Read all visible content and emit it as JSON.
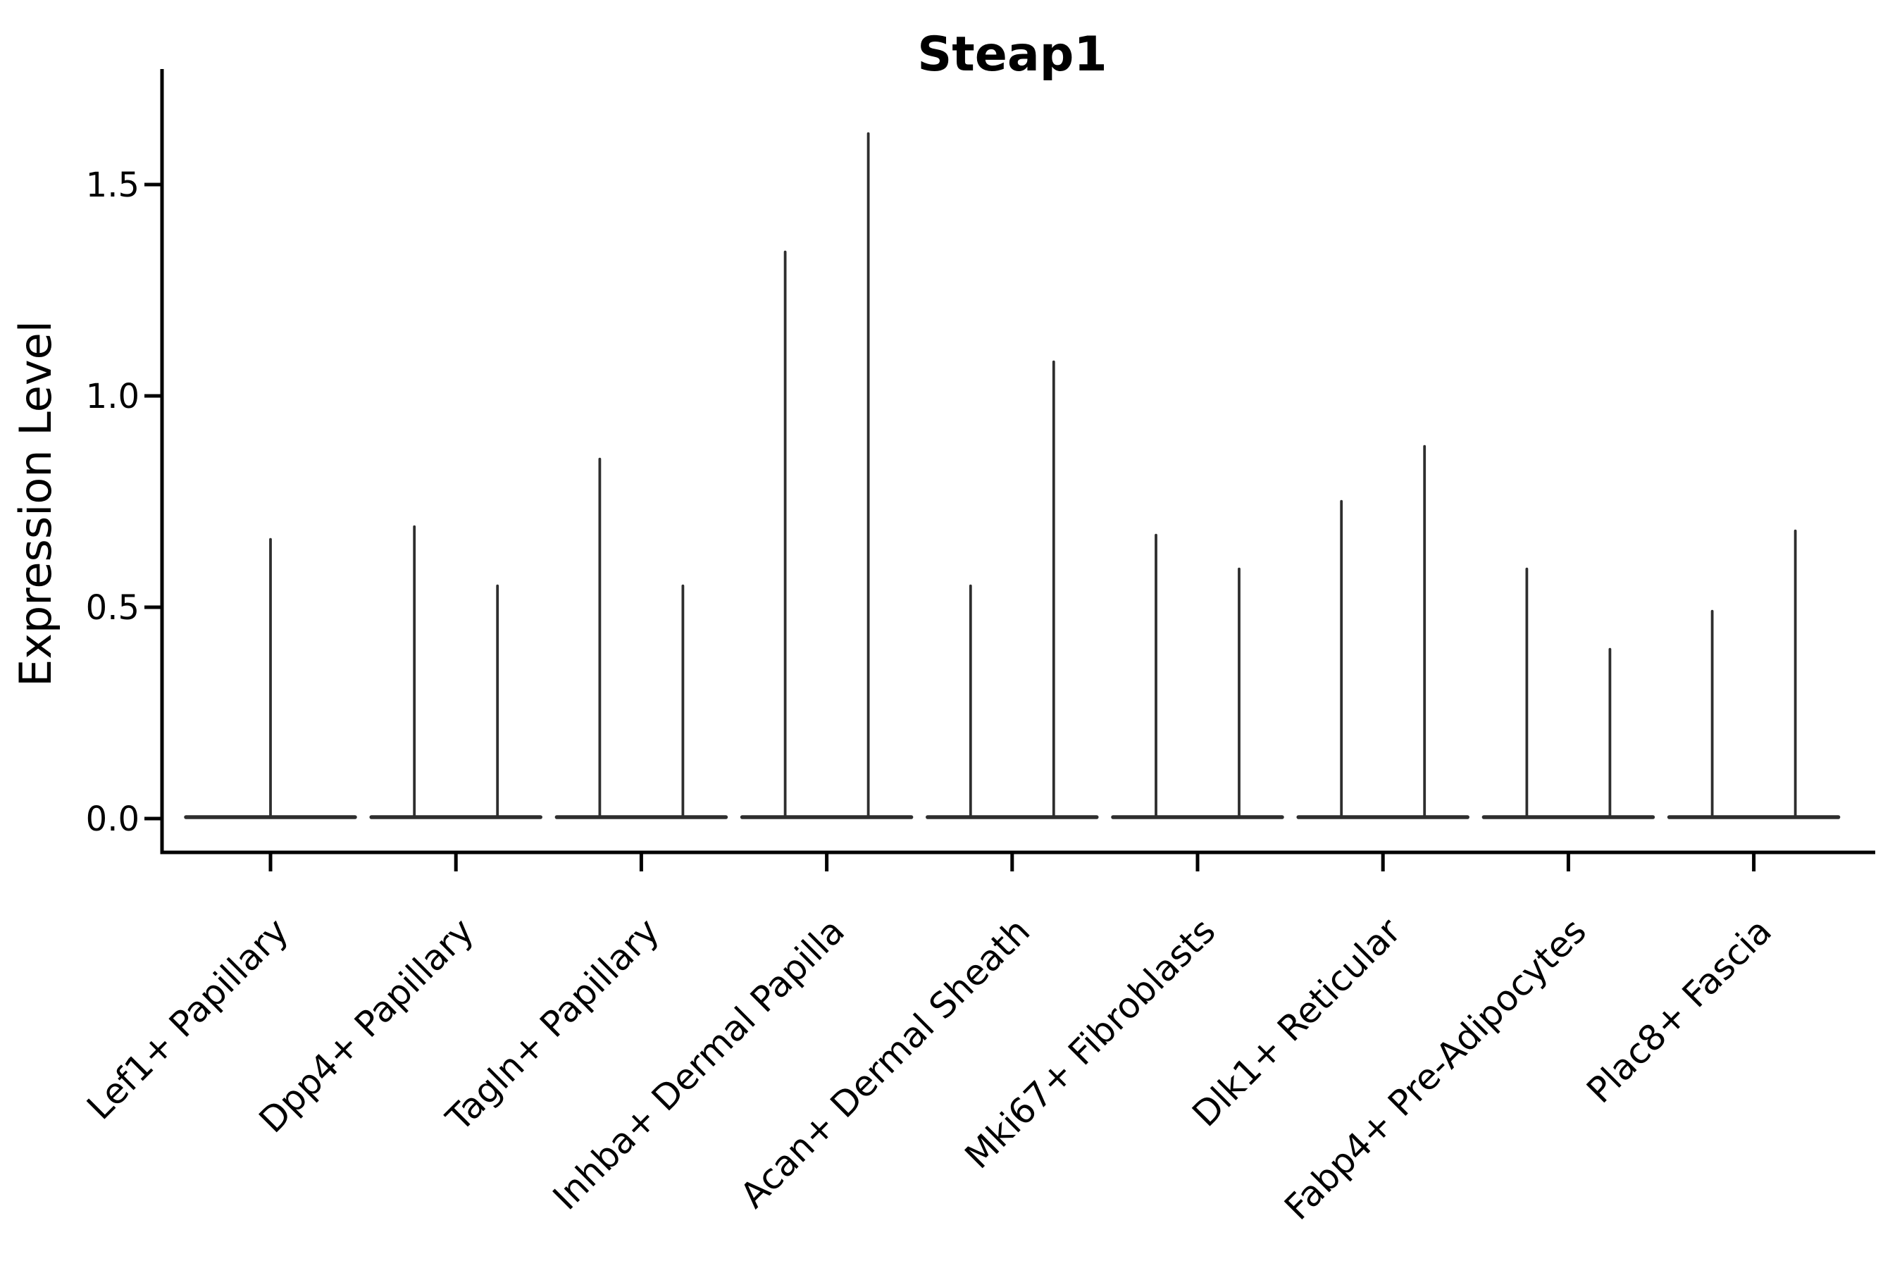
{
  "figure": {
    "background": "#ffffff"
  },
  "chart_data": {
    "type": "violin",
    "title": "Steap1",
    "xlabel": "",
    "ylabel": "Expression Level",
    "legend": "none",
    "grid": false,
    "ylim": [
      -0.08,
      1.78
    ],
    "ytick_values": [
      0.0,
      0.5,
      1.0,
      1.5
    ],
    "ytick_labels": [
      "0.0",
      "0.5",
      "1.0",
      "1.5"
    ],
    "categories": [
      "Lef1+ Papillary",
      "Dpp4+ Papillary",
      "Tagln+ Papillary",
      "Inhba+ Dermal Papilla",
      "Acan+ Dermal Sheath",
      "Mki67+ Fibroblasts",
      "Dlk1+ Reticular",
      "Fabp4+ Pre-Adipocytes",
      "Plac8+ Fascia"
    ],
    "violins": [
      {
        "category": "Lef1+ Papillary",
        "baseline_value": 0.0,
        "spikes": [
          {
            "pos": 0,
            "value": 0.66
          }
        ]
      },
      {
        "category": "Dpp4+ Papillary",
        "baseline_value": 0.0,
        "spikes": [
          {
            "pos": -1,
            "value": 0.69
          },
          {
            "pos": 1,
            "value": 0.55
          }
        ]
      },
      {
        "category": "Tagln+ Papillary",
        "baseline_value": 0.0,
        "spikes": [
          {
            "pos": -1,
            "value": 0.85
          },
          {
            "pos": 1,
            "value": 0.55
          }
        ]
      },
      {
        "category": "Inhba+ Dermal Papilla",
        "baseline_value": 0.0,
        "spikes": [
          {
            "pos": -1,
            "value": 1.34
          },
          {
            "pos": 1,
            "value": 1.62
          }
        ]
      },
      {
        "category": "Acan+ Dermal Sheath",
        "baseline_value": 0.0,
        "spikes": [
          {
            "pos": -1,
            "value": 0.55
          },
          {
            "pos": 1,
            "value": 1.08
          }
        ]
      },
      {
        "category": "Mki67+ Fibroblasts",
        "baseline_value": 0.0,
        "spikes": [
          {
            "pos": -1,
            "value": 0.67
          },
          {
            "pos": 1,
            "value": 0.59
          }
        ]
      },
      {
        "category": "Dlk1+ Reticular",
        "baseline_value": 0.0,
        "spikes": [
          {
            "pos": -1,
            "value": 0.75
          },
          {
            "pos": 1,
            "value": 0.88
          }
        ]
      },
      {
        "category": "Fabp4+ Pre-Adipocytes",
        "baseline_value": 0.0,
        "spikes": [
          {
            "pos": -1,
            "value": 0.59
          },
          {
            "pos": 1,
            "value": 0.4
          }
        ]
      },
      {
        "category": "Plac8+ Fascia",
        "baseline_value": 0.0,
        "spikes": [
          {
            "pos": -1,
            "value": 0.49
          },
          {
            "pos": 1,
            "value": 0.68
          }
        ]
      }
    ],
    "colors": {
      "violin_line": "#2e2e2e",
      "axis": "#000000",
      "text": "#000000",
      "background": "#ffffff"
    }
  }
}
